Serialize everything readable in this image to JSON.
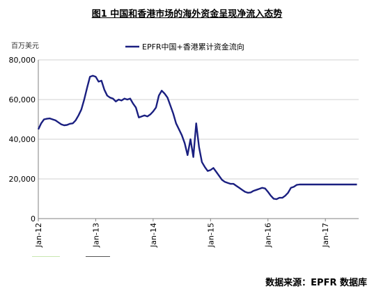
{
  "figure": {
    "title": "图1 中国和香港市场的海外资金呈现净流入态势",
    "source": "数据来源：EPFR 数据库"
  },
  "chart_data": {
    "type": "line",
    "unit_label": "百万美元",
    "legend_position": "top-center",
    "ylim": [
      0,
      80000
    ],
    "y_ticks": [
      "0",
      "20,000",
      "40,000",
      "60,000",
      "80,000"
    ],
    "y_tick_values": [
      0,
      20000,
      40000,
      60000,
      80000
    ],
    "x_ticks": [
      "Jan-12",
      "Jan-13",
      "Jan-14",
      "Jan-15",
      "Jan-16",
      "Jan-17"
    ],
    "x_tick_values": [
      2012.0,
      2013.0,
      2014.0,
      2015.0,
      2016.0,
      2017.0
    ],
    "xlim": [
      2012.0,
      2017.58
    ],
    "grid": "horizontal",
    "colors": {
      "series": "#1a1f80",
      "grid": "#d0d0d0",
      "axis": "#808080"
    },
    "series": [
      {
        "name": "EPFR中国+香港累计资金流向",
        "x": [
          2012.0,
          2012.05,
          2012.1,
          2012.15,
          2012.2,
          2012.25,
          2012.3,
          2012.35,
          2012.4,
          2012.45,
          2012.5,
          2012.55,
          2012.6,
          2012.65,
          2012.7,
          2012.75,
          2012.8,
          2012.85,
          2012.9,
          2012.95,
          2013.0,
          2013.05,
          2013.1,
          2013.15,
          2013.2,
          2013.25,
          2013.3,
          2013.35,
          2013.4,
          2013.45,
          2013.5,
          2013.55,
          2013.6,
          2013.65,
          2013.7,
          2013.75,
          2013.8,
          2013.85,
          2013.9,
          2013.95,
          2014.0,
          2014.05,
          2014.1,
          2014.15,
          2014.2,
          2014.25,
          2014.3,
          2014.35,
          2014.4,
          2014.45,
          2014.5,
          2014.55,
          2014.6,
          2014.65,
          2014.7,
          2014.75,
          2014.8,
          2014.85,
          2014.9,
          2014.95,
          2015.0,
          2015.05,
          2015.1,
          2015.15,
          2015.2,
          2015.25,
          2015.3,
          2015.35,
          2015.4,
          2015.45,
          2015.5,
          2015.55,
          2015.6,
          2015.65,
          2015.7,
          2015.75,
          2015.8,
          2015.85,
          2015.9,
          2015.95,
          2016.0,
          2016.05,
          2016.1,
          2016.15,
          2016.2,
          2016.25,
          2016.3,
          2016.35,
          2016.4,
          2016.45,
          2016.5,
          2016.55,
          2016.6,
          2016.65,
          2016.7,
          2016.75,
          2016.8,
          2016.85,
          2016.9,
          2016.95,
          2017.0,
          2017.05,
          2017.1,
          2017.15,
          2017.2,
          2017.25,
          2017.3,
          2017.35,
          2017.4,
          2017.45,
          2017.5,
          2017.55
        ],
        "values": [
          45000,
          48000,
          50000,
          50300,
          50500,
          50000,
          49500,
          48500,
          47500,
          47000,
          47200,
          47800,
          48000,
          49500,
          52000,
          55000,
          60000,
          66000,
          71500,
          72000,
          71500,
          69000,
          69500,
          65000,
          62000,
          61000,
          60500,
          59000,
          60000,
          59500,
          60500,
          60000,
          60500,
          58000,
          56000,
          51000,
          51500,
          52000,
          51500,
          52500,
          54000,
          56000,
          62000,
          64500,
          63000,
          61000,
          57000,
          53000,
          48000,
          45000,
          42000,
          38000,
          32000,
          40000,
          31000,
          48000,
          36000,
          28500,
          26000,
          24000,
          24500,
          25500,
          23500,
          21500,
          19500,
          18500,
          18000,
          17500,
          17500,
          16500,
          15500,
          14500,
          13500,
          13000,
          13200,
          14000,
          14500,
          15000,
          15500,
          15200,
          13500,
          11500,
          10000,
          9800,
          10500,
          10500,
          11500,
          13000,
          15500,
          16000,
          17000,
          17200,
          17200,
          17200,
          17200,
          17200,
          17200,
          17200,
          17200,
          17200,
          17200,
          17200,
          17200,
          17200,
          17200,
          17200,
          17200,
          17200,
          17200,
          17200,
          17200,
          17200
        ]
      }
    ]
  }
}
